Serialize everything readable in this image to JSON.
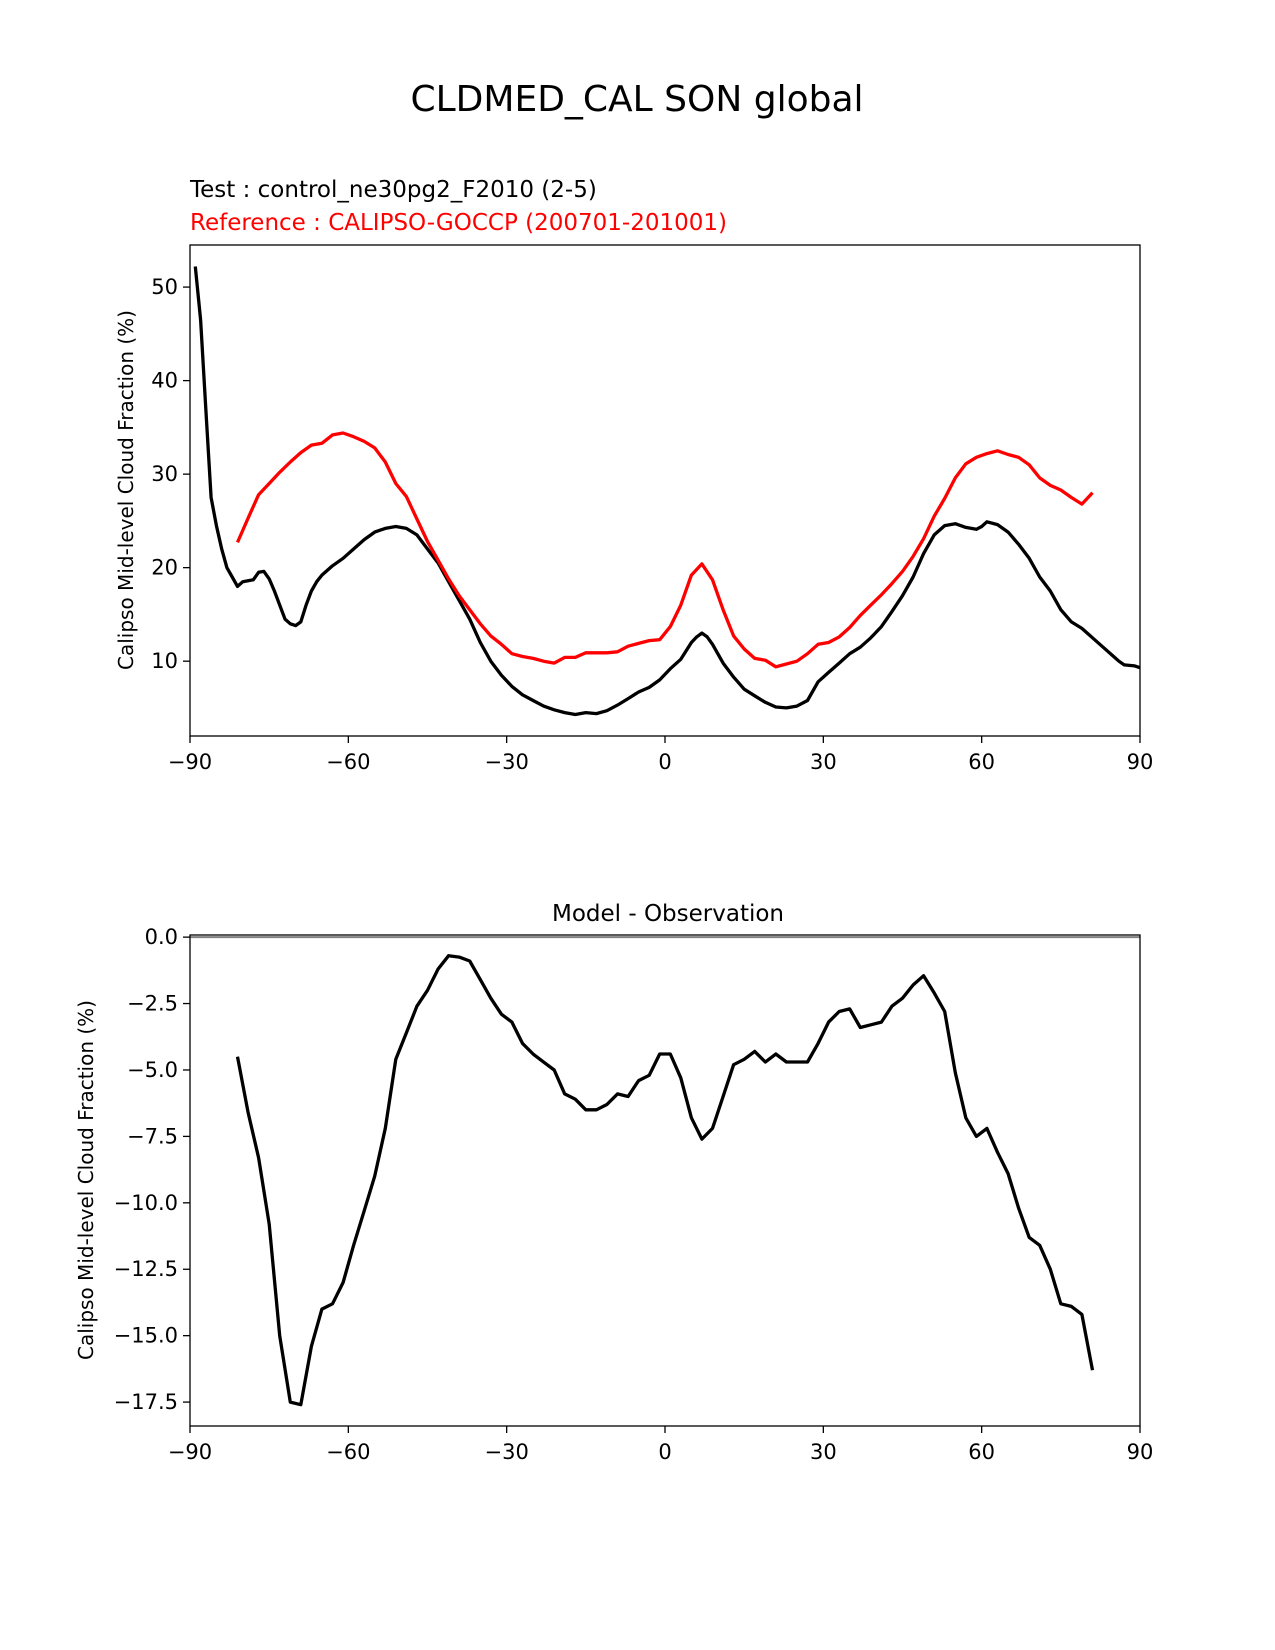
{
  "figure": {
    "title": "CLDMED_CAL SON global",
    "test_label": "Test : control_ne30pg2_F2010 (2-5)",
    "reference_label": "Reference : CALIPSO-GOCCP (200701-201001)",
    "diff_title": "Model - Observation"
  },
  "colors": {
    "test": "#000000",
    "reference": "#ff0000",
    "zero_line": "#808080"
  },
  "chart_data": [
    {
      "type": "line",
      "title": "",
      "xlabel": "",
      "ylabel": "Calipso Mid-level Cloud Fraction (%)",
      "xlim": [
        -90,
        90
      ],
      "ylim": [
        2,
        54.5
      ],
      "xticks": [
        -90,
        -60,
        -30,
        0,
        30,
        60,
        90
      ],
      "xtick_labels": [
        "−90",
        "−60",
        "−30",
        "0",
        "30",
        "60",
        "90"
      ],
      "yticks": [
        10,
        20,
        30,
        40,
        50
      ],
      "ytick_labels": [
        "10",
        "20",
        "30",
        "40",
        "50"
      ],
      "grid": false,
      "series": [
        {
          "color": "#000000",
          "x": [
            -89,
            -88,
            -87,
            -86,
            -85,
            -84,
            -83,
            -82,
            -81,
            -80,
            -79,
            -78,
            -77,
            -76,
            -75,
            -74,
            -73,
            -72,
            -71,
            -70,
            -69,
            -68,
            -67,
            -66,
            -65,
            -63,
            -61,
            -59,
            -57,
            -55,
            -53,
            -51,
            -49,
            -47,
            -45,
            -43,
            -41,
            -39,
            -37,
            -35,
            -33,
            -31,
            -29,
            -27,
            -25,
            -23,
            -21,
            -19,
            -17,
            -15,
            -13,
            -11,
            -9,
            -7,
            -5,
            -3,
            -1,
            1,
            3,
            5,
            6,
            7,
            8,
            9,
            11,
            13,
            15,
            17,
            19,
            21,
            23,
            25,
            27,
            29,
            31,
            33,
            35,
            37,
            39,
            41,
            43,
            45,
            47,
            49,
            51,
            53,
            55,
            57,
            59,
            60,
            61,
            63,
            65,
            67,
            69,
            71,
            73,
            75,
            77,
            79,
            81,
            83,
            85,
            86,
            87,
            89,
            90
          ],
          "y": [
            52.2,
            46.5,
            37,
            27.5,
            24.5,
            22,
            20,
            19,
            18,
            18.5,
            18.6,
            18.7,
            19.5,
            19.6,
            18.8,
            17.5,
            16,
            14.5,
            14,
            13.8,
            14.2,
            16,
            17.5,
            18.5,
            19.2,
            20.2,
            21,
            22,
            23,
            23.8,
            24.2,
            24.4,
            24.2,
            23.5,
            22,
            20.5,
            18.5,
            16.5,
            14.5,
            12,
            10,
            8.5,
            7.3,
            6.4,
            5.8,
            5.2,
            4.8,
            4.5,
            4.3,
            4.5,
            4.4,
            4.7,
            5.3,
            6,
            6.7,
            7.2,
            8,
            9.2,
            10.2,
            12,
            12.6,
            13,
            12.6,
            11.8,
            9.8,
            8.3,
            7,
            6.3,
            5.6,
            5.1,
            5,
            5.2,
            5.8,
            7.8,
            8.8,
            9.8,
            10.8,
            11.5,
            12.5,
            13.7,
            15.3,
            17,
            19,
            21.5,
            23.5,
            24.5,
            24.7,
            24.3,
            24.1,
            24.4,
            24.9,
            24.6,
            23.8,
            22.5,
            21,
            19,
            17.5,
            15.5,
            14.2,
            13.5,
            12.5,
            11.5,
            10.5,
            10,
            9.6,
            9.5,
            9.3
          ]
        },
        {
          "color": "#ff0000",
          "x": [
            -81,
            -79,
            -77,
            -75,
            -73,
            -71,
            -69,
            -67,
            -65,
            -63,
            -61,
            -59,
            -57,
            -55,
            -53,
            -51,
            -49,
            -47,
            -45,
            -43,
            -41,
            -39,
            -37,
            -35,
            -33,
            -31,
            -29,
            -27,
            -25,
            -23,
            -21,
            -19,
            -17,
            -15,
            -13,
            -11,
            -9,
            -7,
            -5,
            -3,
            -1,
            1,
            3,
            5,
            7,
            9,
            11,
            13,
            15,
            17,
            19,
            21,
            23,
            25,
            27,
            29,
            31,
            33,
            35,
            37,
            39,
            41,
            43,
            45,
            47,
            49,
            51,
            53,
            55,
            57,
            59,
            61,
            63,
            65,
            67,
            69,
            71,
            73,
            75,
            77,
            79,
            81
          ],
          "y": [
            22.7,
            25.3,
            27.8,
            29,
            30.2,
            31.3,
            32.3,
            33.1,
            33.3,
            34.2,
            34.4,
            34,
            33.5,
            32.8,
            31.3,
            29,
            27.6,
            25.2,
            22.8,
            20.8,
            18.8,
            17,
            15.5,
            14,
            12.7,
            11.8,
            10.8,
            10.5,
            10.3,
            10,
            9.8,
            10.4,
            10.4,
            10.9,
            10.9,
            10.9,
            11,
            11.6,
            11.9,
            12.2,
            12.3,
            13.7,
            16,
            19.2,
            20.4,
            18.7,
            15.5,
            12.7,
            11.3,
            10.3,
            10.1,
            9.4,
            9.7,
            10,
            10.8,
            11.8,
            12,
            12.6,
            13.6,
            14.9,
            16,
            17.1,
            18.3,
            19.6,
            21.2,
            23.1,
            25.5,
            27.4,
            29.6,
            31.1,
            31.8,
            32.2,
            32.5,
            32.1,
            31.8,
            31,
            29.6,
            28.8,
            28.3,
            27.5,
            26.8,
            28
          ]
        }
      ]
    },
    {
      "type": "line",
      "title": "Model - Observation",
      "xlabel": "",
      "ylabel": "Calipso Mid-level Cloud Fraction (%)",
      "xlim": [
        -90,
        90
      ],
      "ylim": [
        -18.4,
        0.08
      ],
      "xticks": [
        -90,
        -60,
        -30,
        0,
        30,
        60,
        90
      ],
      "xtick_labels": [
        "−90",
        "−60",
        "−30",
        "0",
        "30",
        "60",
        "90"
      ],
      "yticks": [
        0,
        -2.5,
        -5,
        -7.5,
        -10,
        -12.5,
        -15,
        -17.5
      ],
      "ytick_labels": [
        "0.0",
        "−2.5",
        "−5.0",
        "−7.5",
        "−10.0",
        "−12.5",
        "−15.0",
        "−17.5"
      ],
      "grid": false,
      "zero_line": 0,
      "series": [
        {
          "color": "#000000",
          "x": [
            -81,
            -79,
            -77,
            -75,
            -73,
            -71,
            -69,
            -67,
            -65,
            -63,
            -61,
            -59,
            -57,
            -55,
            -53,
            -51,
            -49,
            -47,
            -45,
            -43,
            -41,
            -39,
            -37,
            -35,
            -33,
            -31,
            -29,
            -27,
            -25,
            -23,
            -21,
            -19,
            -17,
            -15,
            -13,
            -11,
            -9,
            -7,
            -5,
            -3,
            -1,
            1,
            3,
            5,
            7,
            9,
            11,
            13,
            15,
            17,
            19,
            21,
            23,
            25,
            27,
            29,
            31,
            33,
            35,
            37,
            39,
            41,
            43,
            45,
            47,
            49,
            51,
            53,
            55,
            57,
            59,
            61,
            63,
            65,
            67,
            69,
            71,
            73,
            75,
            77,
            79,
            81
          ],
          "y": [
            -4.5,
            -6.6,
            -8.3,
            -10.8,
            -15,
            -17.5,
            -17.6,
            -15.4,
            -14,
            -13.8,
            -13,
            -11.6,
            -10.3,
            -9,
            -7.2,
            -4.6,
            -3.6,
            -2.6,
            -2,
            -1.2,
            -0.7,
            -0.75,
            -0.9,
            -1.6,
            -2.3,
            -2.9,
            -3.2,
            -4,
            -4.4,
            -4.7,
            -5,
            -5.9,
            -6.1,
            -6.5,
            -6.5,
            -6.3,
            -5.9,
            -6,
            -5.4,
            -5.2,
            -4.4,
            -4.4,
            -5.3,
            -6.8,
            -7.6,
            -7.2,
            -6,
            -4.8,
            -4.6,
            -4.3,
            -4.7,
            -4.4,
            -4.7,
            -4.7,
            -4.7,
            -4,
            -3.2,
            -2.8,
            -2.7,
            -3.4,
            -3.3,
            -3.2,
            -2.6,
            -2.3,
            -1.8,
            -1.45,
            -2.1,
            -2.8,
            -5.1,
            -6.8,
            -7.5,
            -7.2,
            -8.1,
            -8.9,
            -10.2,
            -11.3,
            -11.6,
            -12.5,
            -13.8,
            -13.9,
            -14.2,
            -16.3
          ]
        }
      ]
    }
  ]
}
